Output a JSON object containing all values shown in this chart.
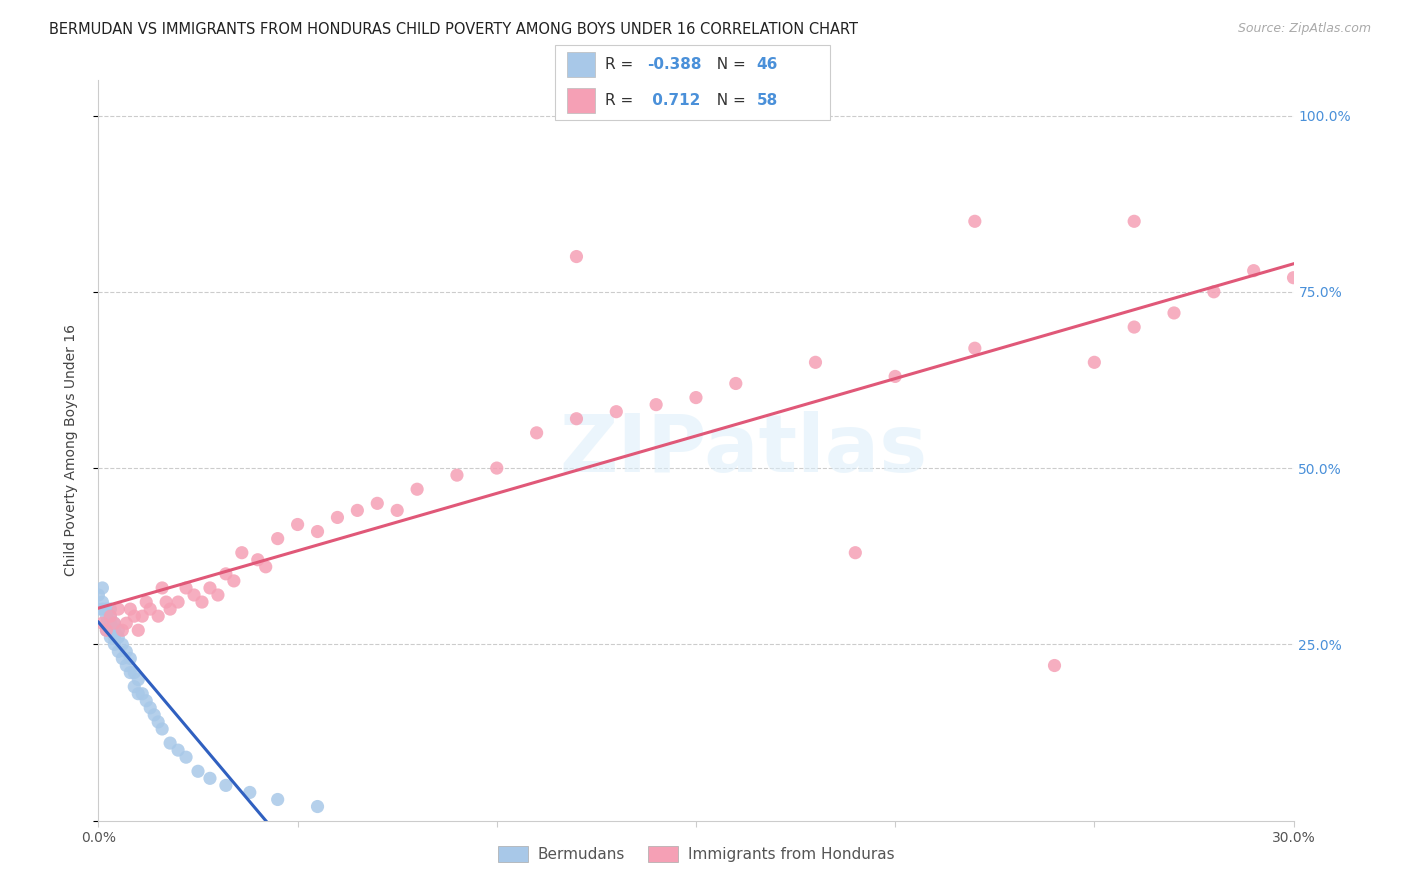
{
  "title": "BERMUDAN VS IMMIGRANTS FROM HONDURAS CHILD POVERTY AMONG BOYS UNDER 16 CORRELATION CHART",
  "source": "Source: ZipAtlas.com",
  "ylabel": "Child Poverty Among Boys Under 16",
  "xlim": [
    0.0,
    0.3
  ],
  "ylim": [
    0.0,
    1.05
  ],
  "watermark": "ZIPatlas",
  "legend_r_bermuda": "-0.388",
  "legend_n_bermuda": "46",
  "legend_r_honduras": "0.712",
  "legend_n_honduras": "58",
  "bermuda_color": "#a8c8e8",
  "honduras_color": "#f5a0b5",
  "bermuda_line_color": "#3060c0",
  "honduras_line_color": "#e05878",
  "right_tick_color": "#4a90d9",
  "grid_color": "#cccccc",
  "title_fontsize": 10.5,
  "tick_fontsize": 10,
  "ylabel_fontsize": 10,
  "bermuda_x": [
    0.0,
    0.0,
    0.001,
    0.001,
    0.001,
    0.002,
    0.002,
    0.002,
    0.002,
    0.003,
    0.003,
    0.003,
    0.003,
    0.003,
    0.004,
    0.004,
    0.004,
    0.004,
    0.005,
    0.005,
    0.005,
    0.006,
    0.006,
    0.007,
    0.007,
    0.008,
    0.008,
    0.009,
    0.009,
    0.01,
    0.01,
    0.011,
    0.012,
    0.013,
    0.014,
    0.015,
    0.016,
    0.018,
    0.02,
    0.022,
    0.025,
    0.028,
    0.032,
    0.038,
    0.045,
    0.055
  ],
  "bermuda_y": [
    0.32,
    0.3,
    0.33,
    0.31,
    0.3,
    0.3,
    0.29,
    0.28,
    0.27,
    0.3,
    0.29,
    0.28,
    0.27,
    0.26,
    0.28,
    0.27,
    0.26,
    0.25,
    0.27,
    0.26,
    0.24,
    0.25,
    0.23,
    0.24,
    0.22,
    0.23,
    0.21,
    0.21,
    0.19,
    0.2,
    0.18,
    0.18,
    0.17,
    0.16,
    0.15,
    0.14,
    0.13,
    0.11,
    0.1,
    0.09,
    0.07,
    0.06,
    0.05,
    0.04,
    0.03,
    0.02
  ],
  "honduras_x": [
    0.001,
    0.002,
    0.003,
    0.004,
    0.005,
    0.006,
    0.007,
    0.008,
    0.009,
    0.01,
    0.011,
    0.012,
    0.013,
    0.015,
    0.016,
    0.017,
    0.018,
    0.02,
    0.022,
    0.024,
    0.026,
    0.028,
    0.03,
    0.032,
    0.034,
    0.036,
    0.04,
    0.042,
    0.045,
    0.05,
    0.055,
    0.06,
    0.065,
    0.07,
    0.075,
    0.08,
    0.09,
    0.1,
    0.11,
    0.12,
    0.13,
    0.14,
    0.15,
    0.16,
    0.18,
    0.19,
    0.2,
    0.22,
    0.24,
    0.25,
    0.26,
    0.27,
    0.28,
    0.29,
    0.3,
    0.22,
    0.26,
    0.12
  ],
  "honduras_y": [
    0.28,
    0.27,
    0.29,
    0.28,
    0.3,
    0.27,
    0.28,
    0.3,
    0.29,
    0.27,
    0.29,
    0.31,
    0.3,
    0.29,
    0.33,
    0.31,
    0.3,
    0.31,
    0.33,
    0.32,
    0.31,
    0.33,
    0.32,
    0.35,
    0.34,
    0.38,
    0.37,
    0.36,
    0.4,
    0.42,
    0.41,
    0.43,
    0.44,
    0.45,
    0.44,
    0.47,
    0.49,
    0.5,
    0.55,
    0.57,
    0.58,
    0.59,
    0.6,
    0.62,
    0.65,
    0.38,
    0.63,
    0.67,
    0.22,
    0.65,
    0.7,
    0.72,
    0.75,
    0.78,
    0.77,
    0.85,
    0.85,
    0.8
  ]
}
